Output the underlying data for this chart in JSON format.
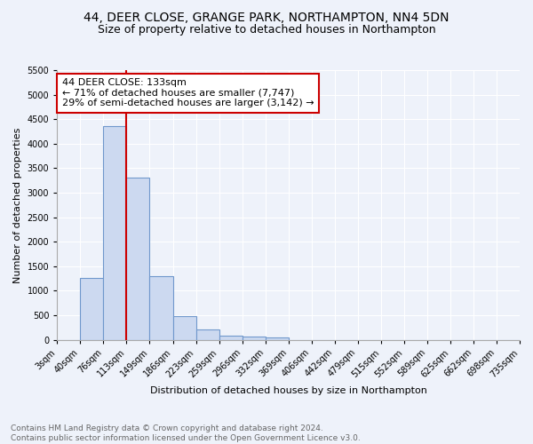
{
  "title1": "44, DEER CLOSE, GRANGE PARK, NORTHAMPTON, NN4 5DN",
  "title2": "Size of property relative to detached houses in Northampton",
  "xlabel": "Distribution of detached houses by size in Northampton",
  "ylabel": "Number of detached properties",
  "annotation_line1": "44 DEER CLOSE: 133sqm",
  "annotation_line2": "← 71% of detached houses are smaller (7,747)",
  "annotation_line3": "29% of semi-detached houses are larger (3,142) →",
  "footer1": "Contains HM Land Registry data © Crown copyright and database right 2024.",
  "footer2": "Contains public sector information licensed under the Open Government Licence v3.0.",
  "bin_labels": [
    "3sqm",
    "40sqm",
    "76sqm",
    "113sqm",
    "149sqm",
    "186sqm",
    "223sqm",
    "259sqm",
    "296sqm",
    "332sqm",
    "369sqm",
    "406sqm",
    "442sqm",
    "479sqm",
    "515sqm",
    "552sqm",
    "589sqm",
    "625sqm",
    "662sqm",
    "698sqm",
    "735sqm"
  ],
  "bar_values": [
    0,
    1270,
    4350,
    3300,
    1290,
    490,
    210,
    85,
    60,
    40,
    0,
    0,
    0,
    0,
    0,
    0,
    0,
    0,
    0,
    0
  ],
  "bar_color": "#ccd9f0",
  "bar_edge_color": "#7098cc",
  "vline_color": "#cc0000",
  "vline_position": 3.0,
  "annotation_box_color": "#cc0000",
  "bg_color": "#eef2fa",
  "grid_color": "#ffffff",
  "ylim_max": 5500,
  "yticks": [
    0,
    500,
    1000,
    1500,
    2000,
    2500,
    3000,
    3500,
    4000,
    4500,
    5000,
    5500
  ],
  "title_fontsize": 10,
  "subtitle_fontsize": 9,
  "ylabel_fontsize": 8,
  "xlabel_fontsize": 8,
  "tick_fontsize": 7,
  "annot_fontsize": 8,
  "footer_fontsize": 6.5,
  "footer_color": "#666666"
}
